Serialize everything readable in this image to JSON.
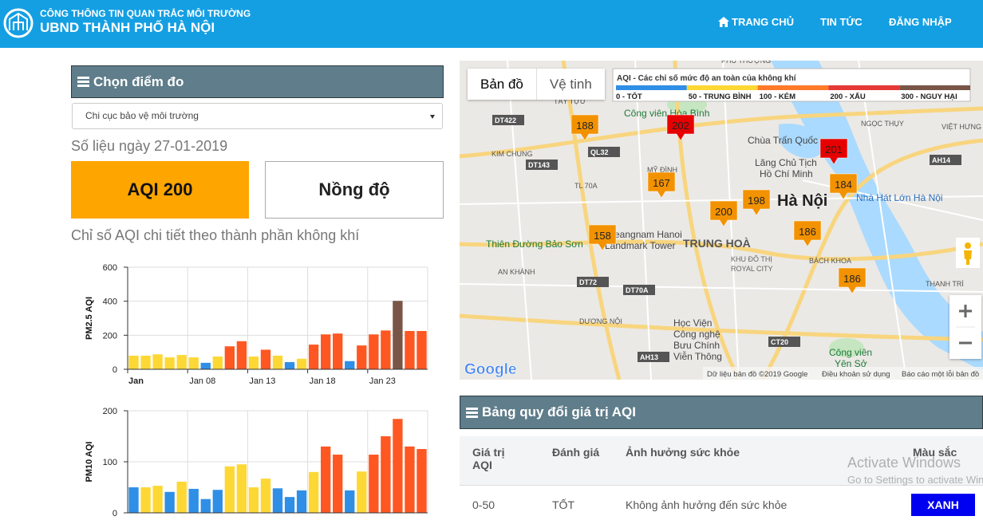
{
  "header": {
    "subtitle": "CÔNG THÔNG TIN QUAN TRẮC MÔI TRƯỜNG",
    "title": "UBND THÀNH PHỐ HÀ NỘI",
    "nav": [
      "TRANG CHỦ",
      "TIN TỨC",
      "ĐĂNG NHẬP"
    ]
  },
  "sidebar": {
    "panel_title": "Chọn điểm đo",
    "station": "Chi cục bảo vệ môi trường",
    "date": "Số liệu ngày 27-01-2019",
    "buttons": [
      "AQI 200",
      "Nồng độ"
    ],
    "caption": "Chỉ số AQI chi tiết theo thành phần không khí"
  },
  "chart_data": [
    {
      "type": "bar",
      "y_label": "PM2.5 AQI",
      "categories": [
        "Jan",
        null,
        null,
        null,
        null,
        "Jan 08",
        null,
        null,
        null,
        null,
        "Jan 13",
        null,
        null,
        null,
        null,
        "Jan 18",
        null,
        null,
        null,
        null,
        "Jan 23",
        null,
        null,
        null,
        null
      ],
      "values": [
        80,
        80,
        88,
        70,
        84,
        70,
        38,
        75,
        135,
        165,
        75,
        115,
        80,
        42,
        62,
        145,
        205,
        210,
        48,
        140,
        205,
        228,
        402,
        225,
        225
      ],
      "colors": [
        "#fdd835",
        "#fdd835",
        "#fdd835",
        "#fdd835",
        "#fdd835",
        "#fdd835",
        "#2f8fe6",
        "#fdd835",
        "#ff5722",
        "#ff5722",
        "#fdd835",
        "#ff5722",
        "#fdd835",
        "#2f8fe6",
        "#fdd835",
        "#ff5722",
        "#ff5722",
        "#ff5722",
        "#2f8fe6",
        "#ff5722",
        "#ff5722",
        "#ff5722",
        "#795548",
        "#ff5722",
        "#ff5722"
      ],
      "ylim": [
        0,
        600
      ],
      "yticks": [
        0,
        200,
        400,
        600
      ],
      "grid": true
    },
    {
      "type": "bar",
      "y_label": "PM10 AQI",
      "values": [
        50,
        50,
        53,
        41,
        61,
        47,
        27,
        45,
        91,
        95,
        50,
        67,
        48,
        31,
        44,
        80,
        130,
        114,
        44,
        81,
        114,
        150,
        184,
        130,
        125
      ],
      "colors": [
        "#2f8fe6",
        "#fdd835",
        "#fdd835",
        "#2f8fe6",
        "#fdd835",
        "#2f8fe6",
        "#2f8fe6",
        "#2f8fe6",
        "#fdd835",
        "#fdd835",
        "#fdd835",
        "#fdd835",
        "#2f8fe6",
        "#2f8fe6",
        "#2f8fe6",
        "#fdd835",
        "#ff5722",
        "#ff5722",
        "#2f8fe6",
        "#fdd835",
        "#ff5722",
        "#ff5722",
        "#ff5722",
        "#ff5722",
        "#ff5722"
      ],
      "ylim": [
        0,
        200
      ],
      "yticks": [
        0,
        100,
        200
      ],
      "grid": true
    }
  ],
  "map": {
    "tabs": [
      "Bản đồ",
      "Vệ tinh"
    ],
    "legend": {
      "title": "AQI - Các chỉ số mức độ an toàn của không khí",
      "items": [
        {
          "label": "0 - TỐT",
          "color": "#2f8fe6"
        },
        {
          "label": "50 - TRUNG BÌNH",
          "color": "#fdd835"
        },
        {
          "label": "100 - KÉM",
          "color": "#ff7a2a"
        },
        {
          "label": "200 - XẤU",
          "color": "#e53935"
        },
        {
          "label": "300 - NGUY HẠI",
          "color": "#795548"
        }
      ]
    },
    "markers": [
      {
        "value": 188,
        "color": "#f39200"
      },
      {
        "value": 202,
        "color": "#e60000"
      },
      {
        "value": 201,
        "color": "#e60000"
      },
      {
        "value": 184,
        "color": "#f39200"
      },
      {
        "value": 167,
        "color": "#f39200"
      },
      {
        "value": 198,
        "color": "#f39200"
      },
      {
        "value": 200,
        "color": "#f39200"
      },
      {
        "value": 158,
        "color": "#f39200"
      },
      {
        "value": 186,
        "color": "#f39200"
      },
      {
        "value": 186,
        "color": "#f39200"
      }
    ],
    "places": [
      "Hà Nội",
      "TRUNG HOÀ",
      "Công viên Hòa Bình",
      "Chùa Trấn Quốc",
      "Lăng Chủ Tịch",
      "Hồ Chí Minh",
      "Nhà Hát Lớn Hà Nội",
      "Keangnam Hanoi",
      "Landmark Tower",
      "Thiên Đường Bảo Sơn",
      "Học Viện",
      "Công nghệ",
      "Bưu Chính",
      "Viễn Thông",
      "KIM CHUNG",
      "AN KHÁNH",
      "DƯƠNG NỘI",
      "BÁCH KHOA",
      "KHU ĐÔ THỊ",
      "ROYAL CITY",
      "Công viên",
      "Yên Sở",
      "NGỌC THỤY",
      "VIỆT HƯNG",
      "THANH TRÌ",
      "MỸ ĐÌNH",
      "PHÚ THƯỢNG",
      "TÂY TỰU",
      "DT422",
      "QL32",
      "DT143",
      "DT72",
      "DT70A",
      "AH13",
      "CT20",
      "AH14",
      "TL 70A"
    ],
    "footer": [
      "Dữ liệu bản đồ ©2019 Google",
      "Điều khoản sử dụng",
      "Báo cáo một lỗi bản đồ"
    ],
    "logo": "Google"
  },
  "aqi_table": {
    "title": "Bảng quy đổi giá trị AQI",
    "columns": [
      "Giá trị AQI",
      "Đánh giá",
      "Ảnh hưởng sức khỏe",
      "Màu sắc"
    ],
    "rows": [
      [
        "0-50",
        "TỐT",
        "Không ảnh hưởng đến sức khỏe",
        "XANH"
      ]
    ]
  },
  "watermark": [
    "Activate Windows",
    "Go to Settings to activate Windows."
  ]
}
